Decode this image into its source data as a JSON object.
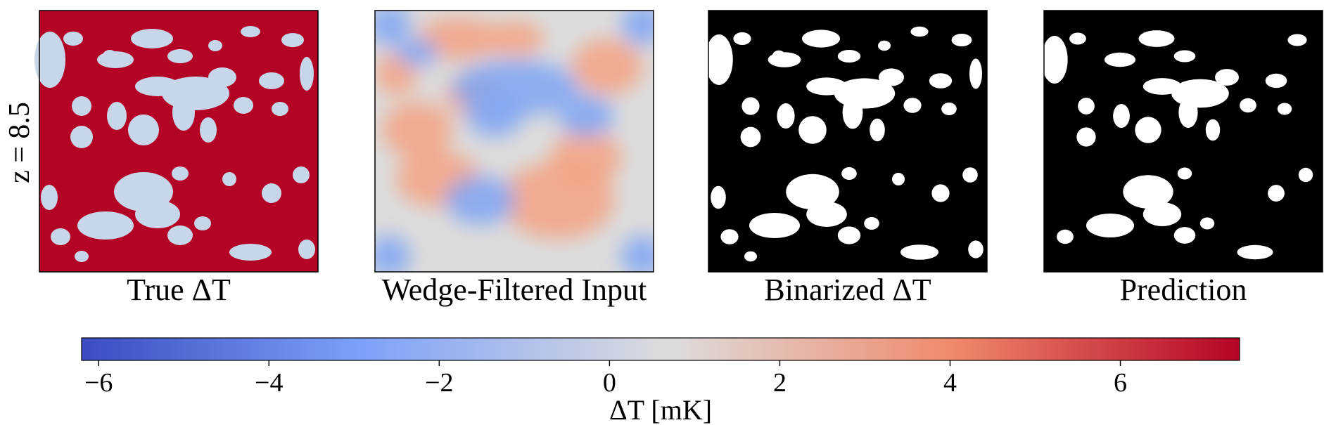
{
  "figure": {
    "row_label": "z = 8.5",
    "panels": [
      {
        "key": "true_dt",
        "title": "True ΔT"
      },
      {
        "key": "wedge_filtered",
        "title": "Wedge-Filtered Input"
      },
      {
        "key": "binarized",
        "title": "Binarized ΔT"
      },
      {
        "key": "prediction",
        "title": "Prediction"
      }
    ]
  },
  "chart_data": {
    "type": "heatmap",
    "panel_titles": [
      "True ΔT",
      "Wedge-Filtered Input",
      "Binarized ΔT",
      "Prediction"
    ],
    "row_label": "z = 8.5",
    "colorbar": {
      "label": "ΔT [mK]",
      "range": [
        -6.2,
        7.4
      ],
      "ticks": [
        -6,
        -4,
        -2,
        0,
        2,
        4,
        6
      ],
      "tick_labels": [
        "−6",
        "−4",
        "−2",
        "0",
        "2",
        "4",
        "6"
      ],
      "colormap": "coolwarm",
      "colors": {
        "min": "#3b4cc0",
        "low": "#7b9ff9",
        "mid": "#dddddd",
        "high": "#f08a6c",
        "max": "#b40426"
      }
    },
    "panel_styles": {
      "true_dt": {
        "background": "#b40426",
        "islands": "#c8d6ea"
      },
      "wedge_filtered": {
        "base": "#dcdcdc",
        "warm": "#f4a283",
        "cool": "#7fa6f5"
      },
      "binarized": {
        "background": "#000000",
        "islands": "#ffffff"
      },
      "prediction": {
        "background": "#000000",
        "islands": "#ffffff"
      }
    }
  }
}
